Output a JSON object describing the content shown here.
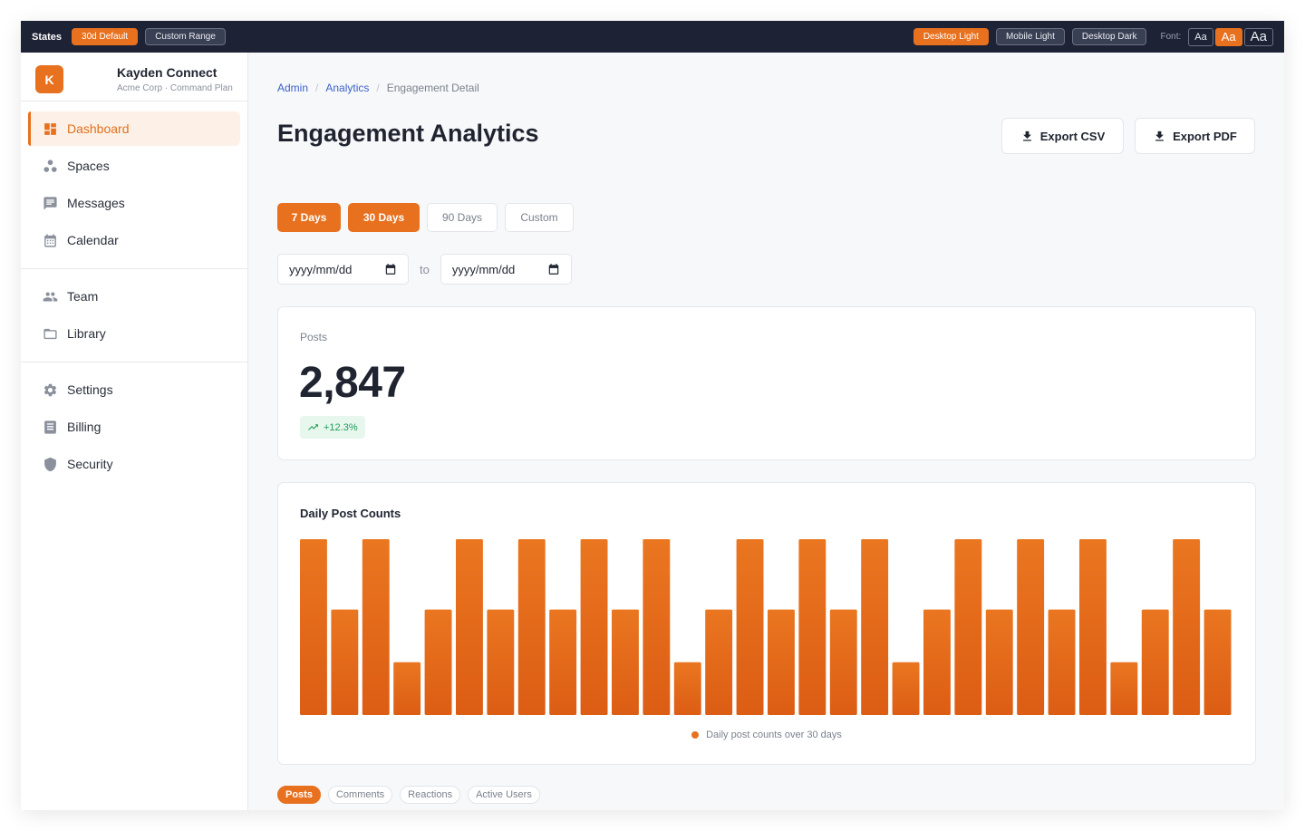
{
  "state_bar": {
    "label": "States",
    "states": [
      "30d Default",
      "Custom Range"
    ],
    "active_state": 0,
    "views": [
      "Desktop Light",
      "Mobile Light",
      "Desktop Dark"
    ],
    "active_view": 0,
    "font_label": "Font:",
    "font_sizes": [
      "Aa",
      "Aa",
      "Aa"
    ],
    "active_font": 1
  },
  "brand": {
    "logo_letter": "K",
    "name": "Kayden Connect",
    "subtitle": "Acme Corp · Command Plan"
  },
  "sidebar": {
    "groups": [
      [
        {
          "label": "Dashboard",
          "icon": "dashboard-icon",
          "active": true
        },
        {
          "label": "Spaces",
          "icon": "spaces-icon"
        },
        {
          "label": "Messages",
          "icon": "messages-icon"
        },
        {
          "label": "Calendar",
          "icon": "calendar-icon"
        }
      ],
      [
        {
          "label": "Team",
          "icon": "team-icon"
        },
        {
          "label": "Library",
          "icon": "folder-icon"
        }
      ],
      [
        {
          "label": "Settings",
          "icon": "gear-icon"
        },
        {
          "label": "Billing",
          "icon": "receipt-icon"
        },
        {
          "label": "Security",
          "icon": "shield-icon"
        }
      ]
    ]
  },
  "breadcrumb": {
    "items": [
      "Admin",
      "Analytics"
    ],
    "current": "Engagement Detail"
  },
  "page": {
    "title": "Engagement Analytics",
    "export_csv": "Export CSV",
    "export_pdf": "Export PDF"
  },
  "ranges": {
    "options": [
      "7 Days",
      "30 Days",
      "90 Days",
      "Custom"
    ],
    "active": [
      0,
      1
    ]
  },
  "date_range": {
    "from_placeholder": "yyyy/mm/dd",
    "to_label": "to",
    "to_placeholder": "yyyy/mm/dd"
  },
  "stat": {
    "label": "Posts",
    "value": "2,847",
    "delta": "+12.3%"
  },
  "chart": {
    "title": "Daily Post Counts",
    "legend": "Daily post counts over 30 days"
  },
  "chart_data": {
    "type": "bar",
    "title": "Daily Post Counts",
    "series": [
      {
        "name": "Daily post counts over 30 days",
        "values": [
          100,
          60,
          100,
          30,
          60,
          100,
          60,
          100,
          60,
          100,
          60,
          100,
          30,
          60,
          100,
          60,
          100,
          60,
          100,
          30,
          60,
          100,
          60,
          100,
          60,
          100,
          30,
          60,
          100,
          60
        ]
      }
    ],
    "color": "#e8711f",
    "grid": false,
    "legend_position": "bottom"
  },
  "tabs": {
    "items": [
      "Posts",
      "Comments",
      "Reactions",
      "Active Users"
    ],
    "active": 0
  }
}
